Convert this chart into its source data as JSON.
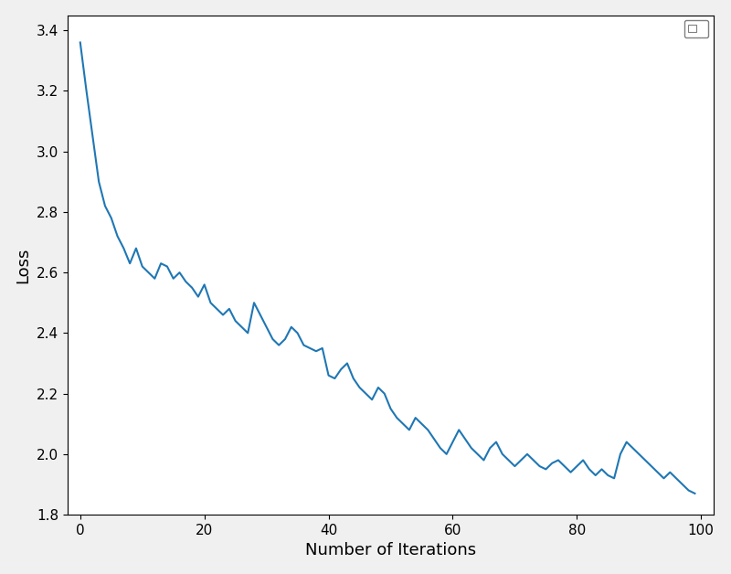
{
  "title": "",
  "xlabel": "Number of Iterations",
  "ylabel": "Loss",
  "xlim": [
    -2,
    102
  ],
  "ylim": [
    1.8,
    3.45
  ],
  "line_color": "#1f77b4",
  "line_width": 1.5,
  "background_color": "#ffffff",
  "seed": 42,
  "yticks": [
    1.8,
    2.0,
    2.2,
    2.4,
    2.6,
    2.8,
    3.0,
    3.2,
    3.4
  ],
  "xticks": [
    0,
    20,
    40,
    60,
    80,
    100
  ],
  "loss_values": [
    3.36,
    3.2,
    3.05,
    2.9,
    2.82,
    2.78,
    2.72,
    2.68,
    2.63,
    2.68,
    2.62,
    2.6,
    2.58,
    2.63,
    2.62,
    2.58,
    2.6,
    2.57,
    2.55,
    2.52,
    2.56,
    2.5,
    2.48,
    2.46,
    2.48,
    2.44,
    2.42,
    2.4,
    2.5,
    2.46,
    2.42,
    2.38,
    2.36,
    2.38,
    2.42,
    2.4,
    2.36,
    2.35,
    2.34,
    2.35,
    2.26,
    2.25,
    2.28,
    2.3,
    2.25,
    2.22,
    2.2,
    2.18,
    2.22,
    2.2,
    2.15,
    2.12,
    2.1,
    2.08,
    2.12,
    2.1,
    2.08,
    2.05,
    2.02,
    2.0,
    2.04,
    2.08,
    2.05,
    2.02,
    2.0,
    1.98,
    2.02,
    2.04,
    2.0,
    1.98,
    1.96,
    1.98,
    2.0,
    1.98,
    1.96,
    1.95,
    1.97,
    1.98,
    1.96,
    1.94,
    1.96,
    1.98,
    1.95,
    1.93,
    1.95,
    1.93,
    1.92,
    2.0,
    2.04,
    2.02,
    2.0,
    1.98,
    1.96,
    1.94,
    1.92,
    1.94,
    1.92,
    1.9,
    1.88,
    1.87
  ]
}
